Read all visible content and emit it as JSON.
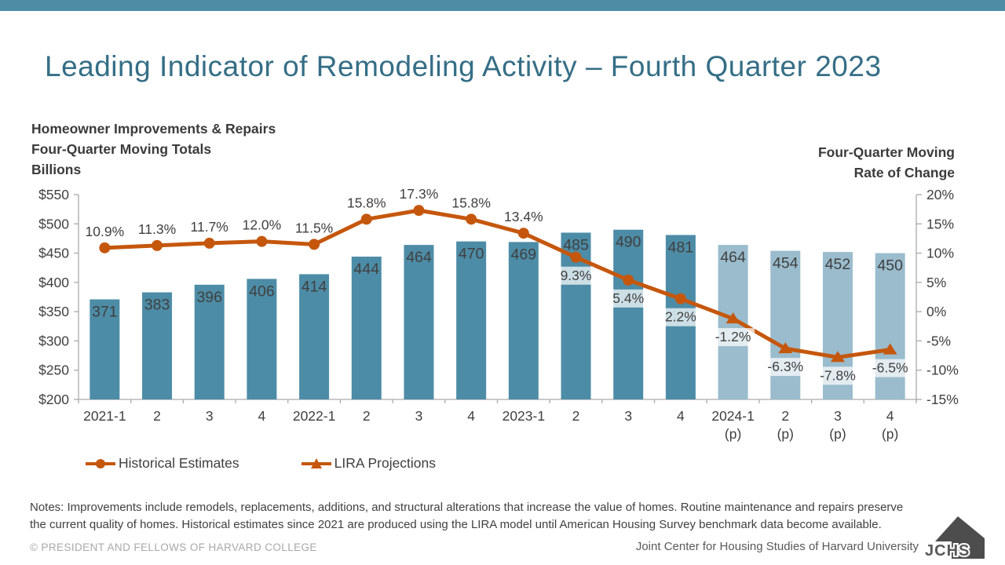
{
  "page": {
    "title": "Leading Indicator of Remodeling Activity – Fourth Quarter 2023",
    "title_color": "#356E86",
    "top_bar_color": "#4E8BA5"
  },
  "left_header": {
    "line1": "Homeowner Improvements & Repairs",
    "line2": "Four-Quarter Moving Totals",
    "line3": "Billions"
  },
  "right_header": {
    "line1": "Four-Quarter Moving",
    "line2": "Rate of Change"
  },
  "chart_data": {
    "type": "combo (bar + line)",
    "title": "Leading Indicator of Remodeling Activity – Fourth Quarter 2023",
    "categories": [
      "2021-1",
      "2",
      "3",
      "4",
      "2022-1",
      "2",
      "3",
      "4",
      "2023-1",
      "2",
      "3",
      "4",
      "2024-1",
      "2",
      "3",
      "4"
    ],
    "category_sublabels": [
      "",
      "",
      "",
      "",
      "",
      "",
      "",
      "",
      "",
      "",
      "",
      "",
      "(p)",
      "(p)",
      "(p)",
      "(p)"
    ],
    "left_axis": {
      "title": "Homeowner Improvements & Repairs Four-Quarter Moving Totals, Billions",
      "min": 200,
      "max": 550,
      "step": 50,
      "tick_labels": [
        "$550",
        "$500",
        "$450",
        "$400",
        "$350",
        "$300",
        "$250",
        "$200"
      ]
    },
    "right_axis": {
      "title": "Four-Quarter Moving Rate of Change",
      "min": -15,
      "max": 20,
      "step": 5,
      "tick_labels": [
        "20%",
        "15%",
        "10%",
        "5%",
        "0%",
        "-5%",
        "-10%",
        "-15%"
      ]
    },
    "grid": false,
    "legend_position": "bottom-left",
    "series": [
      {
        "name": "Homeowner Improvements & Repairs (Billions)",
        "type": "bar",
        "values": [
          371,
          383,
          396,
          406,
          414,
          444,
          464,
          470,
          469,
          485,
          490,
          481,
          464,
          454,
          452,
          450
        ],
        "value_labels": [
          "371",
          "383",
          "396",
          "406",
          "414",
          "444",
          "464",
          "470",
          "469",
          "485",
          "490",
          "481",
          "464",
          "454",
          "452",
          "450"
        ],
        "historical_color": "#4D8CA6",
        "projection_color": "#9ABCCD",
        "projection_start_index": 12,
        "value_label_color": "#404040"
      },
      {
        "name": "Four-Quarter Moving Rate of Change (%)",
        "type": "line",
        "values": [
          10.9,
          11.3,
          11.7,
          12.0,
          11.5,
          15.8,
          17.3,
          15.8,
          13.4,
          9.3,
          5.4,
          2.2,
          -1.2,
          -6.3,
          -7.8,
          -6.5
        ],
        "point_labels": [
          "10.9%",
          "11.3%",
          "11.7%",
          "12.0%",
          "11.5%",
          "15.8%",
          "17.3%",
          "15.8%",
          "13.4%",
          "9.3%",
          "5.4%",
          "2.2%",
          "-1.2%",
          "-6.3%",
          "-7.8%",
          "-6.5%"
        ],
        "color": "#C5570D",
        "historical_points": 12,
        "labels_below_from_index": 9,
        "point_label_color": "#404040"
      }
    ],
    "axis_line_color": "#ABABAB",
    "tick_label_color": "#404040"
  },
  "legend": {
    "items": [
      {
        "label": "Historical Estimates",
        "marker": "circle"
      },
      {
        "label": "LIRA Projections",
        "marker": "triangle"
      }
    ]
  },
  "notes": "Notes: Improvements include remodels, replacements, additions, and structural alterations that increase the value of homes. Routine maintenance and repairs preserve the current quality of homes. Historical estimates since 2021 are produced using the LIRA model until American Housing Survey benchmark data become available.",
  "footer": {
    "copyright": "© PRESIDENT AND FELLOWS OF HARVARD COLLEGE",
    "organization": "Joint Center for Housing Studies of Harvard University",
    "logo_text": "JCHS"
  }
}
